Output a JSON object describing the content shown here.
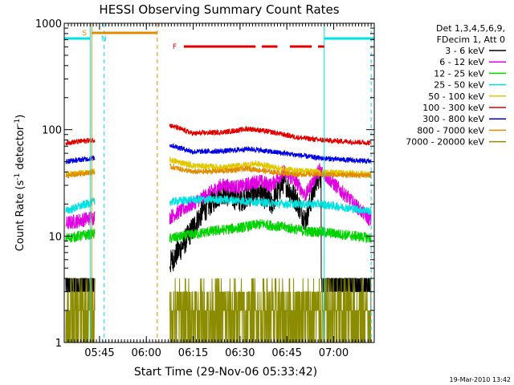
{
  "chart_data": {
    "type": "line",
    "title": "HESSI Observing Summary Count Rates",
    "xlabel": "Start Time (29-Nov-06 05:33:42)",
    "ylabel_main": "Count Rate (s",
    "ylabel_sup1": "-1",
    "ylabel_mid": " detector",
    "ylabel_sup2": "-1",
    "ylabel_end": ")",
    "yscale": "log",
    "ylim": [
      1,
      1000
    ],
    "xlim": [
      "05:33:42",
      "07:13:00"
    ],
    "x_ticks": [
      "05:45",
      "06:00",
      "06:15",
      "06:30",
      "06:45",
      "07:00"
    ],
    "y_ticks": [
      "1",
      "10",
      "100",
      "1000"
    ],
    "legend_header": [
      "Det 1,3,4,5,6,9,",
      "FDecim 1, Att 0"
    ],
    "legend_placement": "right, outside plot",
    "series": [
      {
        "name": "3 - 6 keV",
        "color": "#000000",
        "x": [
          "05:33:42",
          "05:43:00",
          "06:07:30",
          "06:12:00",
          "06:18:00",
          "06:24:00",
          "06:30:00",
          "06:36:00",
          "06:40:00",
          "06:44:00",
          "06:48:00",
          "06:51:00",
          "06:54:00",
          "06:55:30",
          "07:13:00"
        ],
        "values": [
          3.4,
          4.2,
          5.5,
          8.5,
          17,
          26,
          22,
          27,
          20,
          33,
          22,
          14,
          30,
          38,
          3.4
        ]
      },
      {
        "name": "6 - 12 keV",
        "color": "#e100e1",
        "x": [
          "05:33:42",
          "05:43:00",
          "06:07:30",
          "06:12:00",
          "06:18:00",
          "06:24:00",
          "06:30:00",
          "06:36:00",
          "06:40:00",
          "06:44:00",
          "06:48:00",
          "06:51:00",
          "06:54:00",
          "06:55:30",
          "07:13:00"
        ],
        "values": [
          13,
          15,
          15,
          18,
          23,
          30,
          29,
          33,
          30,
          40,
          32,
          24,
          36,
          42,
          13
        ]
      },
      {
        "name": "12 - 25 keV",
        "color": "#00d200",
        "x": [
          "05:33:42",
          "05:43:00",
          "06:07:30",
          "06:12:00",
          "06:20:00",
          "06:30:00",
          "06:37:00",
          "06:45:00",
          "06:52:00",
          "06:55:30",
          "07:13:00"
        ],
        "values": [
          9.5,
          10.5,
          9.5,
          10,
          11,
          12,
          13,
          12,
          11,
          11,
          9.5
        ]
      },
      {
        "name": "25 - 50 keV",
        "color": "#00e1e1",
        "x": [
          "05:33:42",
          "05:43:00",
          "06:07:30",
          "06:15:00",
          "06:25:00",
          "06:35:00",
          "06:45:00",
          "06:55:30",
          "07:13:00"
        ],
        "values": [
          17,
          21,
          21,
          22,
          22,
          21,
          20,
          20,
          17
        ]
      },
      {
        "name": "50 - 100 keV",
        "color": "#e1c800",
        "x": [
          "05:33:42",
          "05:43:00",
          "06:07:30",
          "06:15:00",
          "06:25:00",
          "06:35:00",
          "06:45:00",
          "06:55:30",
          "07:13:00"
        ],
        "values": [
          38,
          40,
          52,
          46,
          44,
          48,
          42,
          40,
          38
        ]
      },
      {
        "name": "100 - 300 keV",
        "color": "#e10000",
        "x": [
          "05:33:42",
          "05:43:00",
          "06:07:30",
          "06:15:00",
          "06:25:00",
          "06:33:00",
          "06:40:00",
          "06:48:00",
          "06:55:30",
          "07:13:00"
        ],
        "values": [
          75,
          80,
          110,
          92,
          95,
          102,
          95,
          85,
          80,
          75
        ]
      },
      {
        "name": "300 - 800 keV",
        "color": "#0000e1",
        "x": [
          "05:33:42",
          "05:43:00",
          "06:07:30",
          "06:15:00",
          "06:25:00",
          "06:33:00",
          "06:40:00",
          "06:48:00",
          "06:55:30",
          "07:13:00"
        ],
        "values": [
          50,
          54,
          72,
          62,
          63,
          66,
          62,
          58,
          54,
          50
        ]
      },
      {
        "name": "800 - 7000 keV",
        "color": "#e18c00",
        "x": [
          "05:33:42",
          "05:43:00",
          "06:07:30",
          "06:15:00",
          "06:25:00",
          "06:33:00",
          "06:40:00",
          "06:48:00",
          "06:55:30",
          "07:13:00"
        ],
        "values": [
          37,
          40,
          45,
          40,
          41,
          43,
          40,
          38,
          38,
          37
        ]
      },
      {
        "name": "7000 - 20000 keV",
        "color": "#8c8c00",
        "x": [
          "05:33:42",
          "05:43:00",
          "06:07:30",
          "06:20:00",
          "06:30:00",
          "06:40:00",
          "06:50:00",
          "06:55:30",
          "07:13:00"
        ],
        "values": [
          2.0,
          2.0,
          2.0,
          2.0,
          2.5,
          2.0,
          2.0,
          2.0,
          2.0
        ]
      }
    ],
    "flags": [
      {
        "label": "S",
        "color": "#e18c00",
        "segments": [
          [
            "05:42:30",
            "06:03:30"
          ]
        ]
      },
      {
        "label": "N",
        "color": "#00e1e1",
        "segments": [
          [
            "05:33:42",
            "05:42:00"
          ],
          [
            "06:57:00",
            "07:13:00"
          ]
        ]
      },
      {
        "label": "F",
        "color": "#e10000",
        "segments": [
          [
            "06:12:00",
            "06:35:00"
          ],
          [
            "06:37:00",
            "06:42:00"
          ],
          [
            "06:46:00",
            "06:53:00"
          ],
          [
            "06:55:00",
            "06:57:00"
          ]
        ]
      }
    ],
    "vertical_markers": [
      {
        "time": "05:42:30",
        "color": "#e18c00",
        "style": "solid"
      },
      {
        "time": "05:42:00",
        "color": "#00e1e1",
        "style": "solid"
      },
      {
        "time": "05:46:30",
        "color": "#00e1e1",
        "style": "dashed"
      },
      {
        "time": "06:03:30",
        "color": "#e18c00",
        "style": "dashed"
      },
      {
        "time": "06:57:00",
        "color": "#00e1e1",
        "style": "solid"
      },
      {
        "time": "07:12:00",
        "color": "#00e1e1",
        "style": "dashed"
      }
    ],
    "gap": [
      "05:43:30",
      "06:07:30"
    ]
  },
  "footer_timestamp": "19-Mar-2010 13:42"
}
